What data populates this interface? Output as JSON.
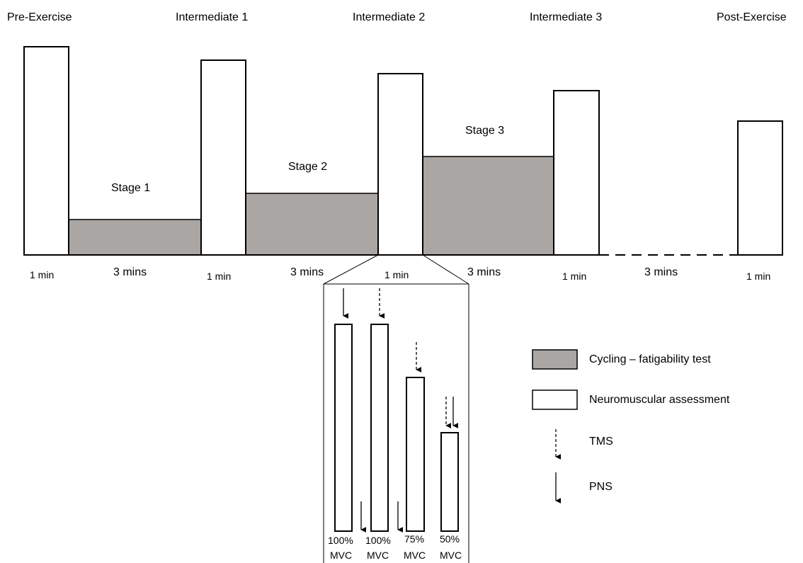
{
  "phases": {
    "pre": "Pre-Exercise",
    "int1": "Intermediate 1",
    "int2": "Intermediate 2",
    "int3": "Intermediate 3",
    "post": "Post-Exercise"
  },
  "stages": {
    "s1": "Stage 1",
    "s2": "Stage 2",
    "s3": "Stage 3"
  },
  "durations": {
    "pre": "1 min",
    "stage1": "3 mins",
    "int1": "1 min",
    "stage2": "3 mins",
    "int2": "1 min",
    "stage3": "3 mins",
    "int3": "1 min",
    "rest": "3 mins",
    "post": "1 min"
  },
  "detail": {
    "bar1": {
      "pct": "100%",
      "unit": "MVC"
    },
    "bar2": {
      "pct": "100%",
      "unit": "MVC"
    },
    "bar3": {
      "pct": "75%",
      "unit": "MVC"
    },
    "bar4": {
      "pct": "50%",
      "unit": "MVC"
    }
  },
  "legend": {
    "cycling": "Cycling – fatigability test",
    "neuro": "Neuromuscular assessment",
    "tms": "TMS",
    "pns": "PNS"
  },
  "colors": {
    "cycling_fill": "#aaa6a4",
    "assessment_fill": "#ffffff",
    "stroke": "#000000"
  }
}
